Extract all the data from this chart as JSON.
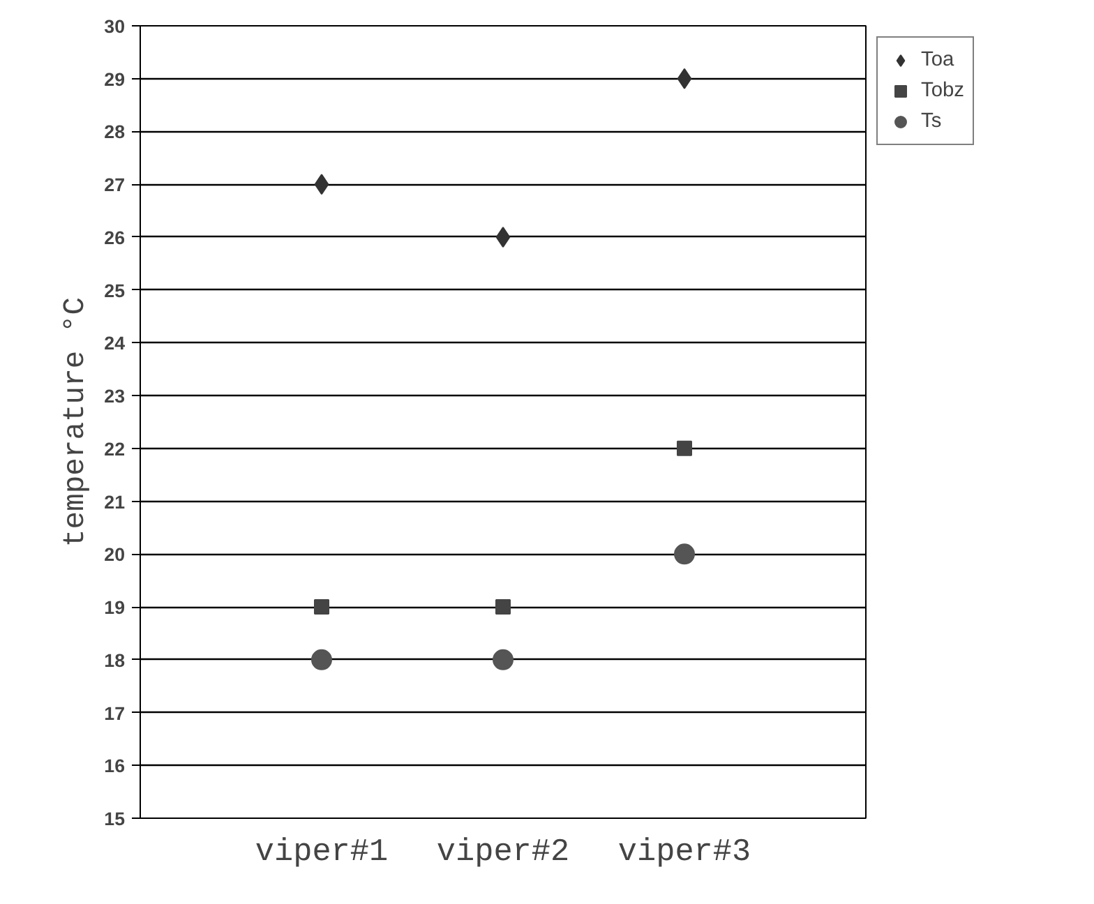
{
  "chart_data": {
    "type": "scatter",
    "ylabel": "temperature °C",
    "categories": [
      "viper#1",
      "viper#2",
      "viper#3"
    ],
    "series": [
      {
        "name": "Toa",
        "color": "#333333",
        "marker": "diamond",
        "values": [
          27,
          26,
          29
        ]
      },
      {
        "name": "Tobz",
        "color": "#444444",
        "marker": "square",
        "values": [
          19,
          19,
          22
        ]
      },
      {
        "name": "Ts",
        "color": "#555555",
        "marker": "circle",
        "values": [
          18,
          18,
          20
        ]
      }
    ],
    "ylim": [
      15,
      30
    ],
    "yticks": [
      15,
      16,
      17,
      18,
      19,
      20,
      21,
      22,
      23,
      24,
      25,
      26,
      27,
      28,
      29,
      30
    ],
    "grid": "y",
    "legend": "top right"
  }
}
